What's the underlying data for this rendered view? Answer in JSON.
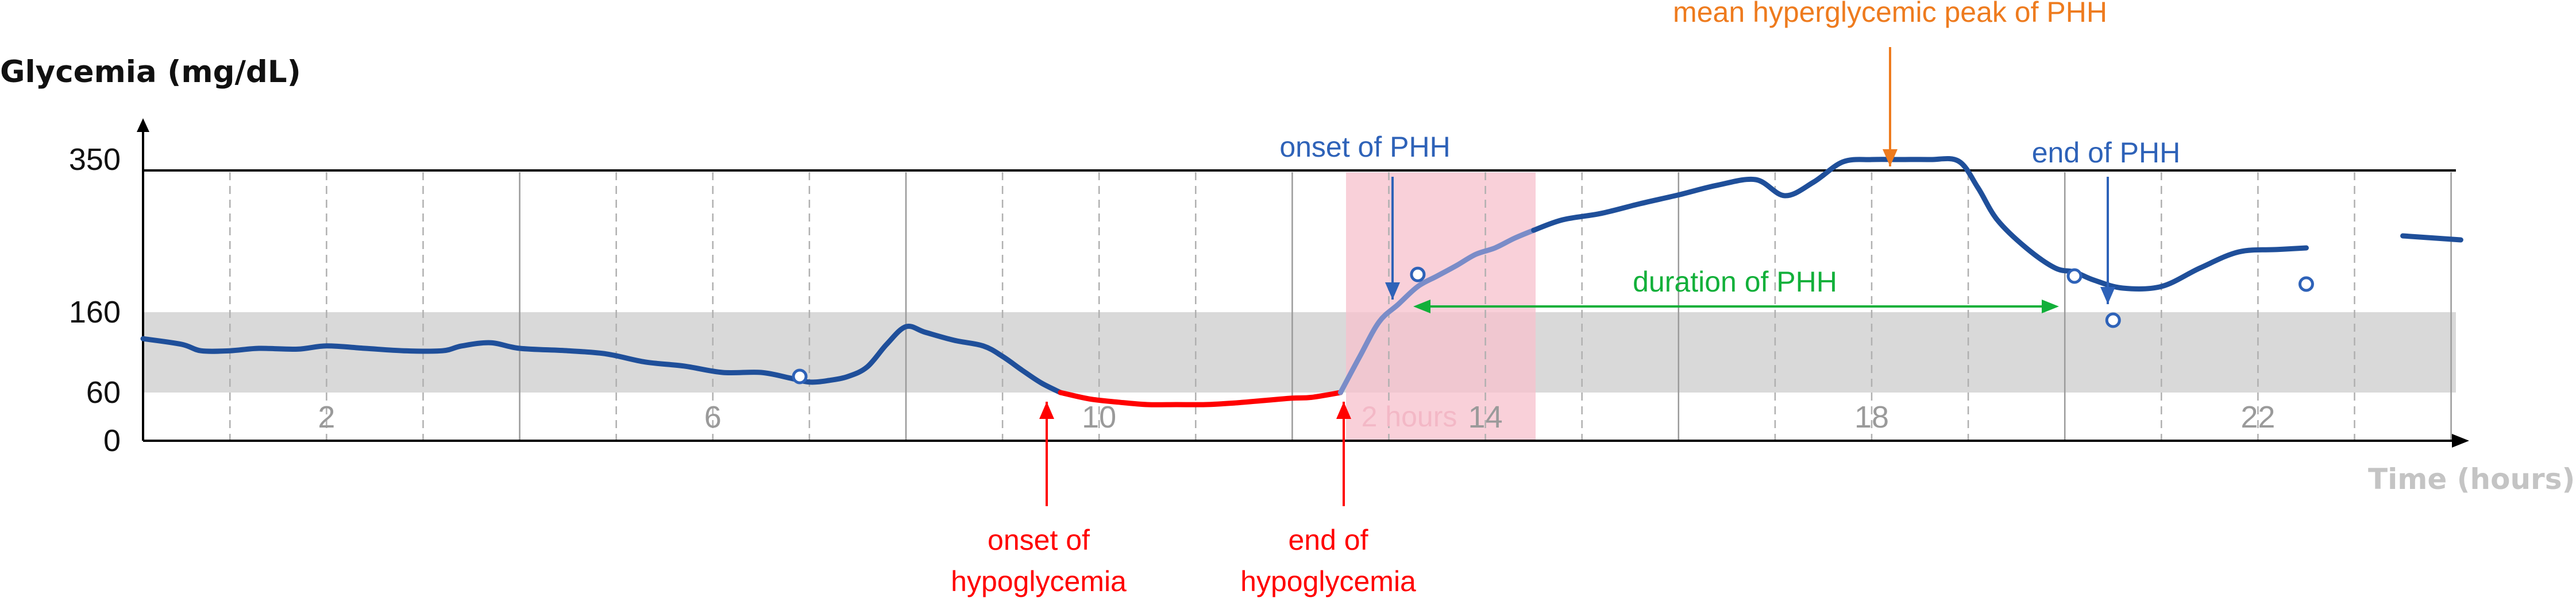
{
  "chart_data": {
    "type": "line",
    "ylabel": "Glycemia (mg/dL)",
    "xlabel": "Time (hours)",
    "xlim": [
      0.1,
      24.1
    ],
    "ylim": [
      0,
      350
    ],
    "xticks": [
      {
        "value": 2,
        "label": "2"
      },
      {
        "value": 6,
        "label": "6"
      },
      {
        "value": 10,
        "label": "10"
      },
      {
        "value": 14,
        "label": "14"
      },
      {
        "value": 18,
        "label": "18"
      },
      {
        "value": 22,
        "label": "22"
      }
    ],
    "yticks": [
      {
        "value": 0,
        "label": "0"
      },
      {
        "value": 60,
        "label": "60"
      },
      {
        "value": 160,
        "label": "160"
      },
      {
        "value": 350,
        "label": "350"
      }
    ],
    "normal_range": [
      60,
      160
    ],
    "series": [
      {
        "segment": "before",
        "color": "#1f4f9a",
        "x": [
          0.1,
          0.5,
          0.7,
          1.0,
          1.3,
          1.7,
          2.0,
          2.4,
          2.8,
          3.2,
          3.4,
          3.7,
          4.0,
          4.5,
          4.9,
          5.3,
          5.7,
          6.1,
          6.5,
          6.8,
          7.0,
          7.2,
          7.4,
          7.6,
          7.8,
          8.0,
          8.2,
          8.5,
          8.8,
          9.0,
          9.2,
          9.4,
          9.6
        ],
        "y": [
          127,
          120,
          112,
          112,
          115,
          114,
          118,
          115,
          112,
          112,
          118,
          122,
          115,
          112,
          108,
          98,
          93,
          85,
          85,
          78,
          73,
          75,
          80,
          92,
          120,
          142,
          135,
          125,
          118,
          105,
          88,
          72,
          60
        ]
      },
      {
        "segment": "hypoglycemia",
        "color": "#ff0000",
        "x": [
          9.6,
          9.9,
          10.2,
          10.5,
          10.8,
          11.1,
          11.4,
          11.7,
          12.0,
          12.2,
          12.5
        ],
        "y": [
          60,
          52,
          48,
          45,
          45,
          45,
          47,
          50,
          53,
          54,
          60
        ]
      },
      {
        "segment": "rise",
        "color": "#7a8cc8",
        "x": [
          12.5,
          12.7,
          12.9,
          13.1,
          13.3,
          13.5,
          13.7,
          13.9,
          14.1,
          14.3,
          14.5
        ],
        "y": [
          60,
          105,
          148,
          170,
          192,
          205,
          218,
          232,
          240,
          252,
          262
        ]
      },
      {
        "segment": "after",
        "color": "#1f4f9a",
        "x": [
          14.5,
          14.8,
          15.2,
          15.6,
          16.0,
          16.4,
          16.8,
          17.1,
          17.4,
          17.7,
          18.0,
          18.3,
          18.6,
          18.9,
          19.1,
          19.3,
          19.6,
          19.9,
          20.1,
          20.3,
          20.6,
          21.0,
          21.4,
          21.8,
          22.2,
          22.5
        ],
        "y": [
          262,
          275,
          283,
          295,
          306,
          318,
          325,
          305,
          322,
          347,
          350,
          350,
          350,
          348,
          315,
          275,
          240,
          215,
          210,
          200,
          190,
          192,
          215,
          235,
          238,
          240
        ]
      },
      {
        "segment": "end",
        "color": "#1f4f9a",
        "x": [
          23.5,
          24.1
        ],
        "y": [
          255,
          250
        ]
      }
    ],
    "open_points": [
      {
        "x": 6.9,
        "y": 80
      },
      {
        "x": 13.3,
        "y": 207
      },
      {
        "x": 20.1,
        "y": 205
      },
      {
        "x": 20.5,
        "y": 150
      },
      {
        "x": 22.5,
        "y": 195
      }
    ],
    "annotations": {
      "onset_hypo": "onset of\nhypoglycemia",
      "end_hypo": "end of\nhypoglycemia",
      "onset_phh": "onset of PHH",
      "end_phh": "end of PHH",
      "duration_phh": "duration of PHH",
      "mean_peak": "mean hyperglycemic peak of PHH",
      "two_hours": "2 hours"
    },
    "colors": {
      "hypo": "#ff0000",
      "phh": "#2e62b8",
      "duration": "#12b03a",
      "peak": "#ee7b1e",
      "highlight": "#f7c0cc",
      "band": "#d9d9d9",
      "two_hours": "#f3b8c6"
    }
  }
}
